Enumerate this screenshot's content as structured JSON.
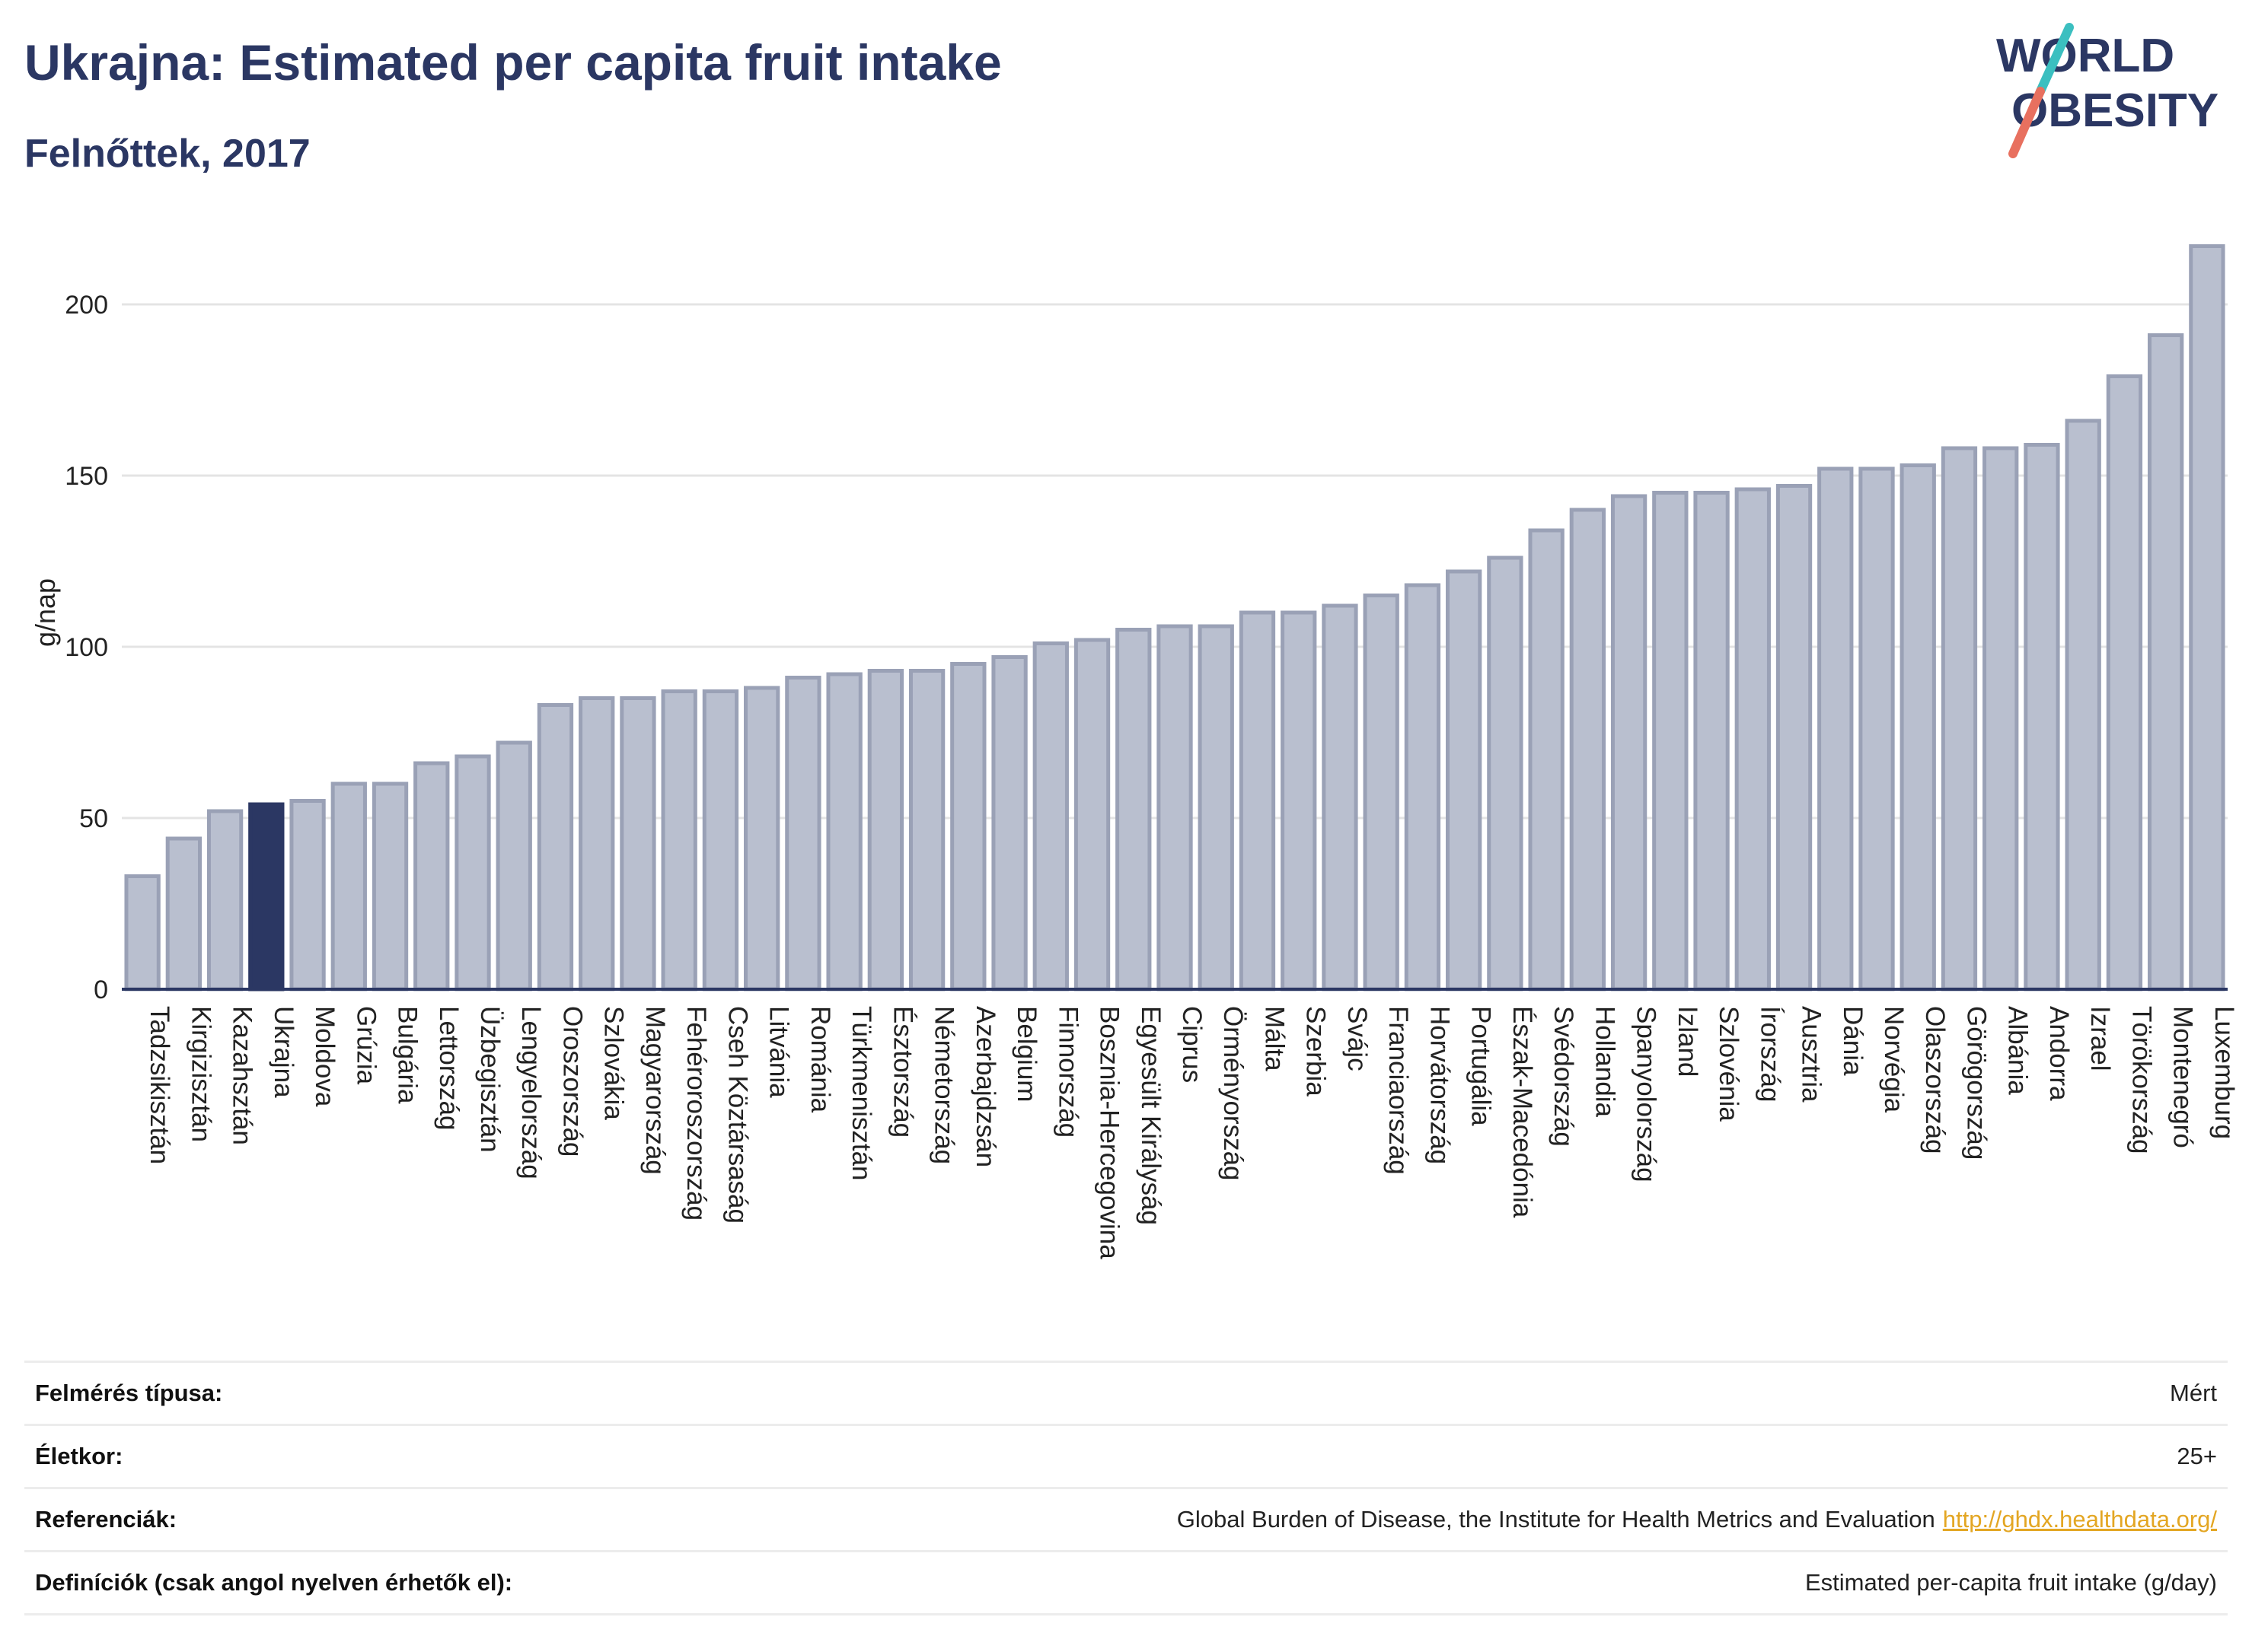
{
  "header": {
    "title": "Ukrajna: Estimated per capita fruit intake",
    "subtitle": "Felnőttek, 2017"
  },
  "logo": {
    "line1": "WORLD",
    "line2": "OBESITY"
  },
  "colors": {
    "bar": "#b9bfcf",
    "bar_border": "#9aa1b6",
    "highlight": "#2b3763",
    "title": "#2b3763",
    "logo_teal": "#3bbfc0",
    "logo_coral": "#e8705f"
  },
  "chart_data": {
    "type": "bar",
    "ylabel": "g/nap",
    "xlabel": "",
    "ylim": [
      0,
      220
    ],
    "yticks": [
      0,
      50,
      100,
      150,
      200
    ],
    "grid": true,
    "highlight": "Ukrajna",
    "categories": [
      "Tadzsikisztán",
      "Kirgizisztán",
      "Kazahsztán",
      "Ukrajna",
      "Moldova",
      "Grúzia",
      "Bulgária",
      "Lettország",
      "Üzbegisztán",
      "Lengyelország",
      "Oroszország",
      "Szlovákia",
      "Magyarország",
      "Fehéroroszország",
      "Cseh Köztársaság",
      "Litvánia",
      "Románia",
      "Türkmenisztán",
      "Észtország",
      "Németország",
      "Azerbajdzsán",
      "Belgium",
      "Finnország",
      "Bosznia-Hercegovina",
      "Egyesült Királyság",
      "Ciprus",
      "Örményország",
      "Málta",
      "Szerbia",
      "Svájc",
      "Franciaország",
      "Horvátország",
      "Portugália",
      "Észak-Macedónia",
      "Svédország",
      "Hollandia",
      "Spanyolország",
      "Izland",
      "Szlovénia",
      "Írország",
      "Ausztria",
      "Dánia",
      "Norvégia",
      "Olaszország",
      "Görögország",
      "Albánia",
      "Andorra",
      "Izrael",
      "Törökország",
      "Montenegró",
      "Luxemburg"
    ],
    "values": [
      33,
      44,
      52,
      54,
      55,
      60,
      60,
      66,
      68,
      72,
      83,
      85,
      85,
      87,
      87,
      88,
      91,
      92,
      93,
      93,
      95,
      97,
      101,
      102,
      105,
      106,
      106,
      110,
      110,
      112,
      115,
      118,
      122,
      126,
      134,
      140,
      144,
      145,
      145,
      146,
      147,
      152,
      152,
      153,
      158,
      158,
      159,
      166,
      179,
      191,
      217
    ]
  },
  "meta": {
    "rows": [
      {
        "label": "Felmérés típusa:",
        "value": "Mért",
        "link": ""
      },
      {
        "label": "Életkor:",
        "value": "25+",
        "link": ""
      },
      {
        "label": "Referenciák:",
        "value": "Global Burden of Disease, the Institute for Health Metrics and Evaluation",
        "link": "http://ghdx.healthdata.org/"
      },
      {
        "label": "Definíciók (csak angol nyelven érhetők el):",
        "value": "Estimated per-capita fruit intake (g/day)",
        "link": ""
      }
    ]
  }
}
